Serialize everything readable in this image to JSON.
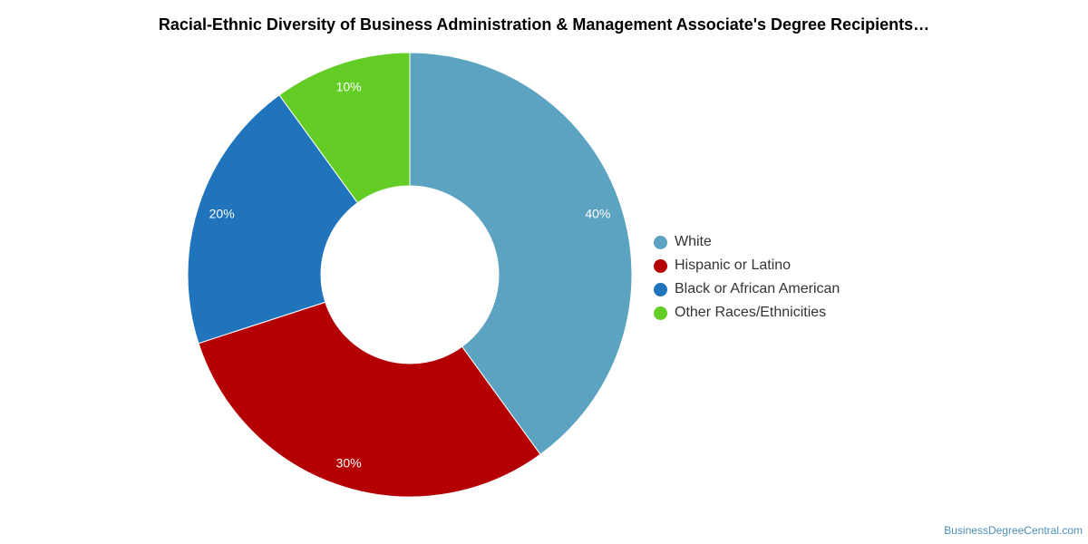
{
  "chart_title": "Racial-Ethnic Diversity of Business Administration & Management Associate's Degree Recipients…",
  "credit": "BusinessDegreeCentral.com",
  "chart_data": {
    "type": "pie",
    "variant": "donut",
    "title": "Racial-Ethnic Diversity of Business Administration & Management Associate's Degree Recipients…",
    "unit": "%",
    "legend_placement": "right",
    "slices": [
      {
        "name": "White",
        "value": 40,
        "label": "40%",
        "color": "#5ba3c0"
      },
      {
        "name": "Hispanic or Latino",
        "value": 30,
        "label": "30%",
        "color": "#b50003"
      },
      {
        "name": "Black or African American",
        "value": 20,
        "label": "20%",
        "color": "#1f74bb"
      },
      {
        "name": "Other Races/Ethnicities",
        "value": 10,
        "label": "10%",
        "color": "#63cd26"
      }
    ]
  }
}
